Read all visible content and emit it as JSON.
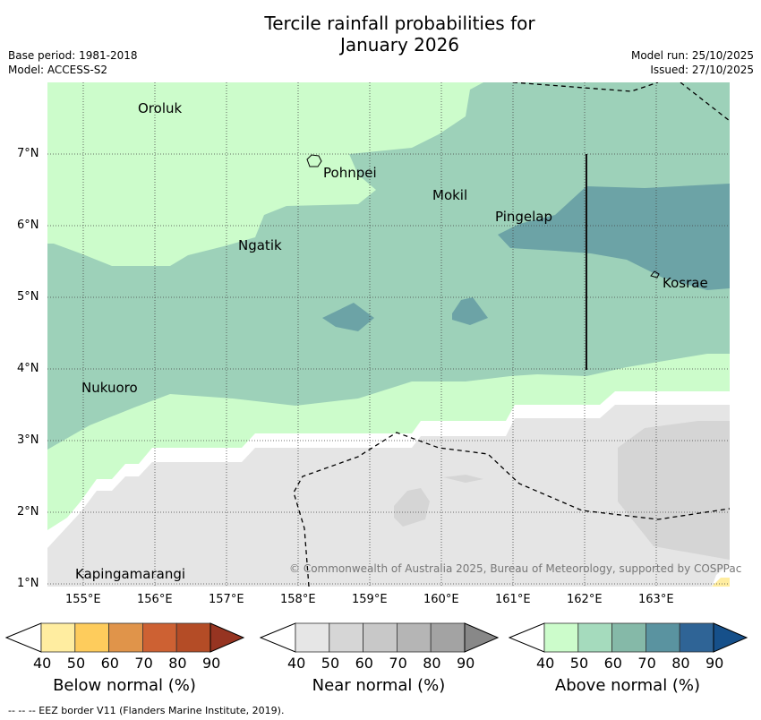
{
  "title_line1": "Tercile rainfall probabilities for",
  "title_line2": "January 2026",
  "base_period": "Base period: 1981-2018",
  "model": "Model: ACCESS-S2",
  "model_run": "Model run: 25/10/2025",
  "issued": "Issued: 27/10/2025",
  "lon_ticks": [
    "155°E",
    "156°E",
    "157°E",
    "158°E",
    "159°E",
    "160°E",
    "161°E",
    "162°E",
    "163°E"
  ],
  "lat_ticks": [
    "7°N",
    "6°N",
    "5°N",
    "4°N",
    "3°N",
    "2°N",
    "1°N"
  ],
  "places": [
    "Oroluk",
    "Pohnpei",
    "Mokil",
    "Pingelap",
    "Ngatik",
    "Kosrae",
    "Nukuoro",
    "Kapingamarangi"
  ],
  "copyright": "© Commonwealth of Australia 2025, Bureau of Meteorology, supported by COSPPac",
  "colorbars": [
    {
      "label": "Below normal (%)",
      "ticks": [
        "40",
        "50",
        "60",
        "70",
        "80",
        "90"
      ],
      "colors": [
        "#ffeda0",
        "#fecc5c",
        "#e0944a",
        "#cd6133",
        "#b44c26",
        "#963421"
      ]
    },
    {
      "label": "Near normal (%)",
      "ticks": [
        "40",
        "50",
        "60",
        "70",
        "80",
        "90"
      ],
      "colors": [
        "#e6e6e6",
        "#d6d6d6",
        "#c8c8c8",
        "#b5b5b5",
        "#a3a3a3",
        "#888888"
      ]
    },
    {
      "label": "Above normal (%)",
      "ticks": [
        "40",
        "50",
        "60",
        "70",
        "80",
        "90"
      ],
      "colors": [
        "#ccfccb",
        "#a5dbbd",
        "#85b9a8",
        "#5a93a0",
        "#2f6496",
        "#16508a"
      ]
    }
  ],
  "map_colors": {
    "above40": "#ccfccb",
    "above50": "#9dd1b9",
    "above60": "#6ca3a6",
    "near40": "#e5e5e5",
    "near50": "#d5d5d5",
    "below40": "#ffeda0"
  },
  "footnote": "--  --  -- EEZ border V11 (Flanders Marine Institute, 2019)."
}
